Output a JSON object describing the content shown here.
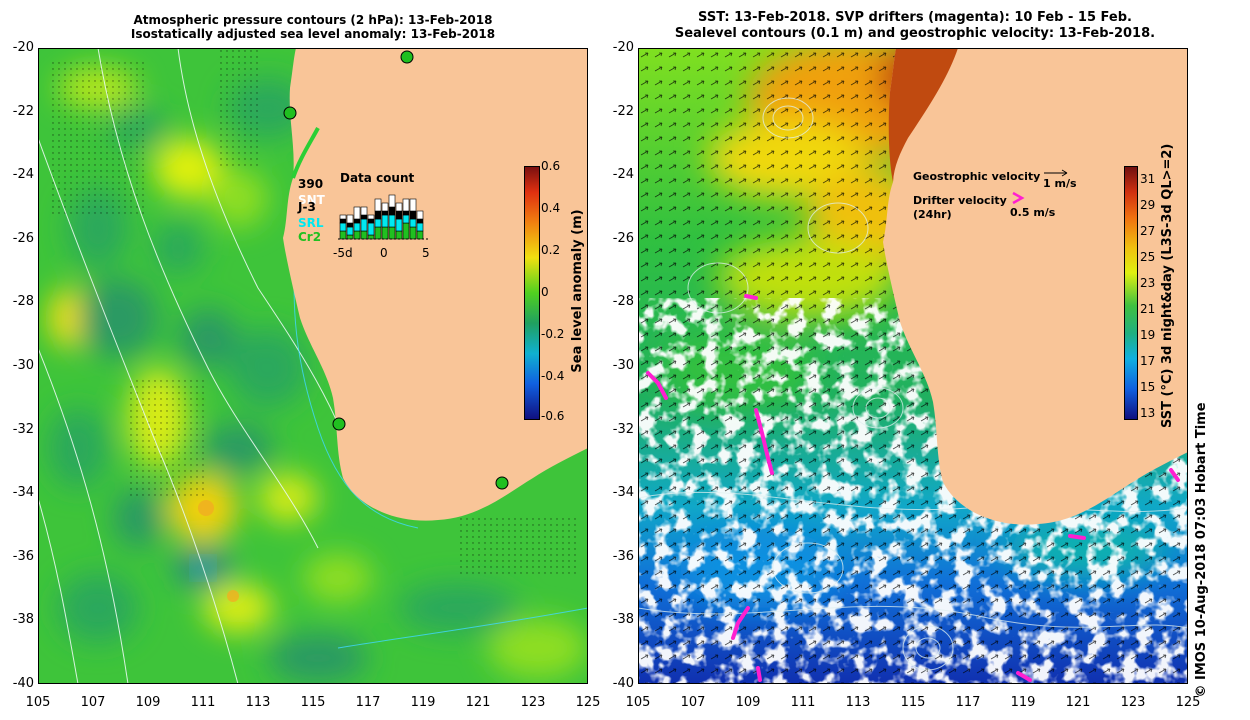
{
  "left_panel": {
    "title_line1": "Atmospheric pressure contours (2 hPa): 13-Feb-2018",
    "title_line2": "Isostatically adjusted sea level anomaly: 13-Feb-2018",
    "x_ticks": [
      "105",
      "107",
      "109",
      "111",
      "113",
      "115",
      "117",
      "119",
      "121",
      "123",
      "125"
    ],
    "y_ticks": [
      "-20",
      "-22",
      "-24",
      "-26",
      "-28",
      "-30",
      "-32",
      "-34",
      "-36",
      "-38",
      "-40"
    ],
    "colorbar": {
      "label": "Sea level anomaly (m)",
      "ticks": [
        "0.6",
        "0.4",
        "0.2",
        "0",
        "-0.2",
        "-0.4",
        "-0.6"
      ]
    },
    "data_count": {
      "title": "Data count",
      "labels": [
        "390",
        "SNT",
        "J-3",
        "SRL",
        "Cr2"
      ],
      "label_colors": [
        "#000000",
        "#ffffff",
        "#000000",
        "#00e8f0",
        "#20c020"
      ],
      "x_ticks": [
        "-5d",
        "0",
        "5"
      ],
      "stack_values": [
        [
          2,
          1,
          2,
          2,
          1,
          3,
          3,
          3,
          2,
          4,
          3,
          2
        ],
        [
          2,
          2,
          2,
          3,
          3,
          2,
          3,
          3,
          3,
          2,
          2,
          2
        ],
        [
          1,
          1,
          1,
          1,
          1,
          2,
          1,
          2,
          2,
          1,
          2,
          1
        ],
        [
          1,
          2,
          3,
          2,
          1,
          3,
          2,
          3,
          2,
          3,
          3,
          2
        ]
      ],
      "stack_colors": [
        "#20c020",
        "#00e8f0",
        "#000000",
        "#ffffff"
      ]
    },
    "tide_gauges": [
      [
        114.1,
        -22.0
      ],
      [
        118.4,
        -20.3
      ],
      [
        115.9,
        -31.8
      ],
      [
        121.9,
        -33.7
      ]
    ]
  },
  "right_panel": {
    "title_line1": "SST: 13-Feb-2018. SVP drifters (magenta): 10 Feb - 15 Feb.",
    "title_line2": "Sealevel contours (0.1 m) and geostrophic velocity: 13-Feb-2018.",
    "x_ticks": [
      "105",
      "107",
      "109",
      "111",
      "113",
      "115",
      "117",
      "119",
      "121",
      "123",
      "125"
    ],
    "y_ticks": [
      "-20",
      "-22",
      "-24",
      "-26",
      "-28",
      "-30",
      "-32",
      "-34",
      "-36",
      "-38",
      "-40"
    ],
    "colorbar": {
      "label": "SST (°C) 3d night&day (L3S-3d QL>=2)",
      "ticks": [
        "31",
        "29",
        "27",
        "25",
        "23",
        "21",
        "19",
        "17",
        "15",
        "13"
      ]
    },
    "legend": {
      "geostrophic": "Geostrophic velocity",
      "geostrophic_scale": "1 m/s",
      "drifter": "Drifter velocity",
      "drifter_sub": "(24hr)",
      "drifter_scale": "0.5 m/s"
    }
  },
  "footer": "© IMOS 10-Aug-2018 07:03 Hobart Time",
  "colors": {
    "land": "#f9c598",
    "drifter": "#ff1fd0",
    "tide_gauge": "#20c020"
  }
}
